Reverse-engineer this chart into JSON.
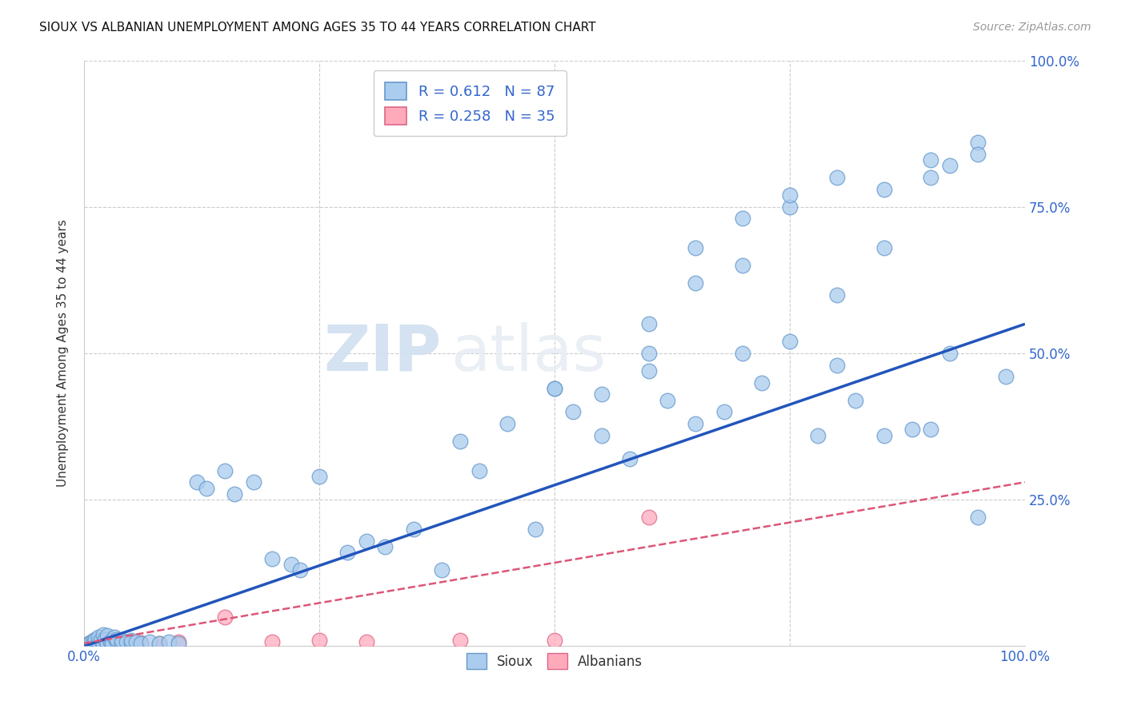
{
  "title": "SIOUX VS ALBANIAN UNEMPLOYMENT AMONG AGES 35 TO 44 YEARS CORRELATION CHART",
  "source": "Source: ZipAtlas.com",
  "ylabel": "Unemployment Among Ages 35 to 44 years",
  "xlim": [
    0,
    1
  ],
  "ylim": [
    0,
    1
  ],
  "xticks": [
    0,
    0.25,
    0.5,
    0.75,
    1.0
  ],
  "yticks": [
    0.25,
    0.5,
    0.75,
    1.0
  ],
  "xticklabels": [
    "0.0%",
    "",
    "",
    "",
    "100.0%"
  ],
  "yticklabels": [
    "25.0%",
    "50.0%",
    "75.0%",
    "100.0%"
  ],
  "sioux_color": "#aaccee",
  "sioux_edge_color": "#6699cc",
  "albanian_color": "#ffaabb",
  "albanian_edge_color": "#dd6688",
  "sioux_line_color": "#2255bb",
  "albanian_line_color": "#dd5577",
  "sioux_R": 0.612,
  "sioux_N": 87,
  "albanian_R": 0.258,
  "albanian_N": 35,
  "watermark_zip": "ZIP",
  "watermark_atlas": "atlas",
  "background_color": "#ffffff",
  "sioux_x": [
    0.005,
    0.008,
    0.01,
    0.01,
    0.012,
    0.015,
    0.015,
    0.018,
    0.02,
    0.02,
    0.022,
    0.025,
    0.025,
    0.028,
    0.03,
    0.03,
    0.032,
    0.035,
    0.035,
    0.04,
    0.04,
    0.045,
    0.05,
    0.05,
    0.055,
    0.06,
    0.07,
    0.08,
    0.09,
    0.1,
    0.12,
    0.13,
    0.15,
    0.16,
    0.18,
    0.2,
    0.22,
    0.23,
    0.25,
    0.28,
    0.3,
    0.32,
    0.35,
    0.38,
    0.4,
    0.42,
    0.45,
    0.48,
    0.5,
    0.52,
    0.55,
    0.58,
    0.6,
    0.62,
    0.65,
    0.68,
    0.7,
    0.72,
    0.75,
    0.78,
    0.8,
    0.82,
    0.85,
    0.88,
    0.9,
    0.92,
    0.95,
    0.98,
    0.5,
    0.55,
    0.6,
    0.65,
    0.7,
    0.75,
    0.8,
    0.85,
    0.9,
    0.95,
    0.6,
    0.65,
    0.7,
    0.75,
    0.8,
    0.85,
    0.9,
    0.92,
    0.95
  ],
  "sioux_y": [
    0.005,
    0.008,
    0.01,
    0.005,
    0.012,
    0.008,
    0.015,
    0.01,
    0.005,
    0.02,
    0.012,
    0.005,
    0.018,
    0.008,
    0.01,
    0.005,
    0.015,
    0.008,
    0.012,
    0.005,
    0.01,
    0.008,
    0.005,
    0.01,
    0.008,
    0.005,
    0.008,
    0.005,
    0.008,
    0.005,
    0.28,
    0.27,
    0.3,
    0.26,
    0.28,
    0.15,
    0.14,
    0.13,
    0.29,
    0.16,
    0.18,
    0.17,
    0.2,
    0.13,
    0.35,
    0.3,
    0.38,
    0.2,
    0.44,
    0.4,
    0.36,
    0.32,
    0.47,
    0.42,
    0.38,
    0.4,
    0.5,
    0.45,
    0.52,
    0.36,
    0.48,
    0.42,
    0.36,
    0.37,
    0.37,
    0.5,
    0.22,
    0.46,
    0.44,
    0.43,
    0.5,
    0.68,
    0.65,
    0.75,
    0.8,
    0.68,
    0.83,
    0.86,
    0.55,
    0.62,
    0.73,
    0.77,
    0.6,
    0.78,
    0.8,
    0.82,
    0.84
  ],
  "albanian_x": [
    0.003,
    0.005,
    0.006,
    0.008,
    0.009,
    0.01,
    0.01,
    0.012,
    0.012,
    0.015,
    0.015,
    0.018,
    0.018,
    0.02,
    0.02,
    0.022,
    0.022,
    0.025,
    0.025,
    0.028,
    0.03,
    0.03,
    0.035,
    0.04,
    0.05,
    0.06,
    0.08,
    0.1,
    0.15,
    0.2,
    0.25,
    0.3,
    0.4,
    0.5,
    0.6
  ],
  "albanian_y": [
    0.003,
    0.005,
    0.004,
    0.006,
    0.005,
    0.008,
    0.004,
    0.01,
    0.005,
    0.008,
    0.004,
    0.01,
    0.005,
    0.008,
    0.004,
    0.006,
    0.008,
    0.005,
    0.01,
    0.006,
    0.005,
    0.008,
    0.006,
    0.005,
    0.008,
    0.006,
    0.005,
    0.008,
    0.05,
    0.008,
    0.01,
    0.008,
    0.01,
    0.01,
    0.22
  ],
  "sioux_line_x": [
    0.0,
    1.0
  ],
  "sioux_line_y": [
    0.0,
    0.55
  ],
  "albanian_line_x": [
    0.0,
    1.0
  ],
  "albanian_line_y": [
    0.005,
    0.28
  ]
}
